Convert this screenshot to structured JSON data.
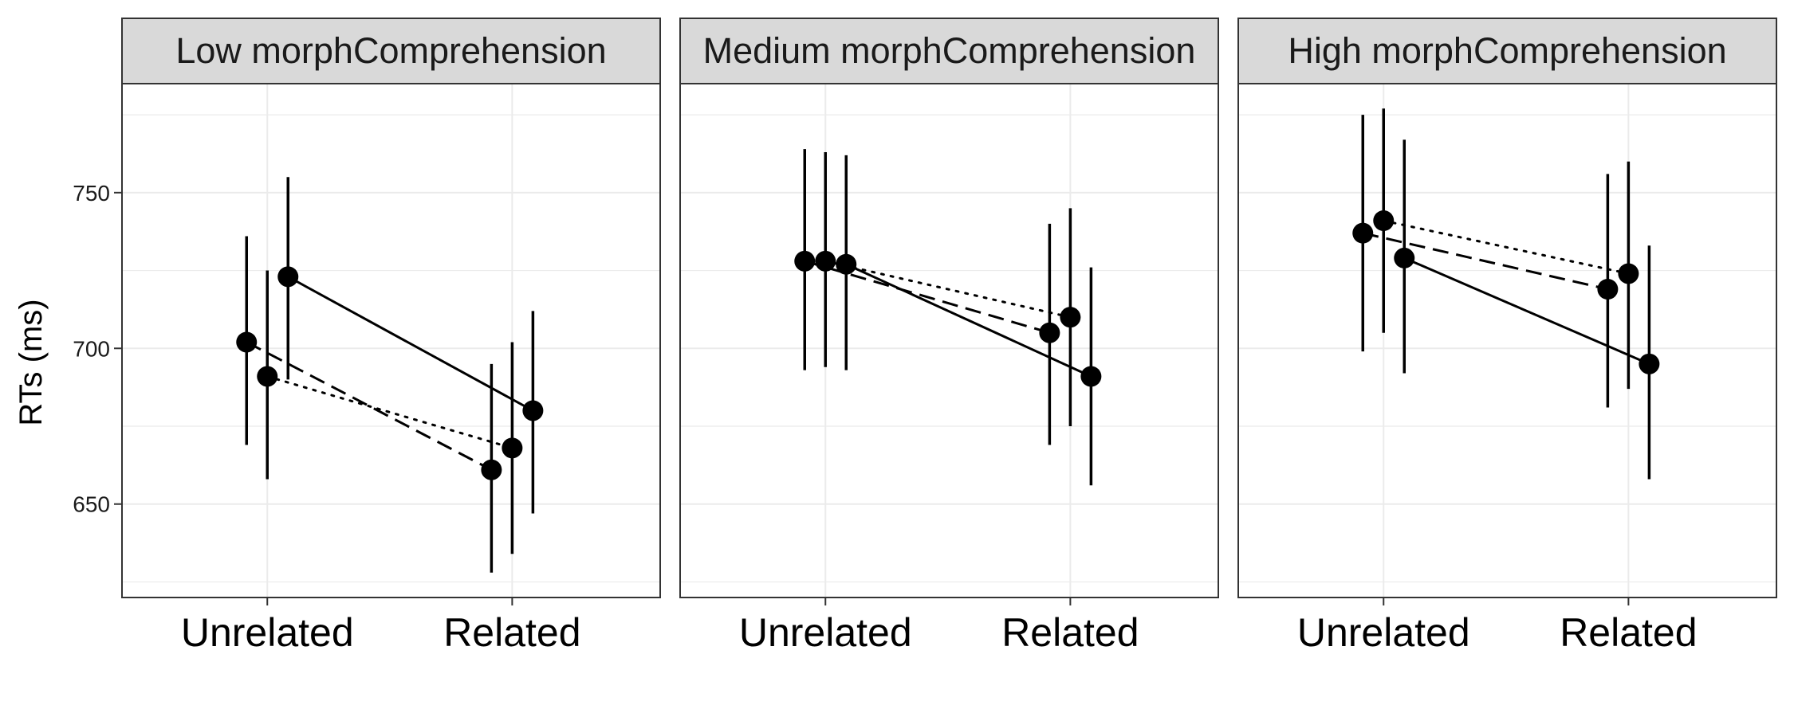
{
  "chart_data": {
    "type": "line",
    "ylabel": "RTs (ms)",
    "xlabel": "",
    "y_ticks": [
      650,
      700,
      750
    ],
    "ylim": [
      620,
      785
    ],
    "categories": [
      "Unrelated",
      "Related"
    ],
    "grid": true,
    "legend": "none",
    "panels": [
      {
        "title": "Low morphComprehension",
        "series": [
          {
            "linestyle": "dashed",
            "values": [
              702,
              661
            ],
            "lower": [
              669,
              628
            ],
            "upper": [
              736,
              695
            ]
          },
          {
            "linestyle": "dotted",
            "values": [
              691,
              668
            ],
            "lower": [
              658,
              634
            ],
            "upper": [
              725,
              702
            ]
          },
          {
            "linestyle": "solid",
            "values": [
              723,
              680
            ],
            "lower": [
              690,
              647
            ],
            "upper": [
              755,
              712
            ]
          }
        ]
      },
      {
        "title": "Medium morphComprehension",
        "series": [
          {
            "linestyle": "dashed",
            "values": [
              728,
              705
            ],
            "lower": [
              693,
              669
            ],
            "upper": [
              764,
              740
            ]
          },
          {
            "linestyle": "dotted",
            "values": [
              728,
              710
            ],
            "lower": [
              694,
              675
            ],
            "upper": [
              763,
              745
            ]
          },
          {
            "linestyle": "solid",
            "values": [
              727,
              691
            ],
            "lower": [
              693,
              656
            ],
            "upper": [
              762,
              726
            ]
          }
        ]
      },
      {
        "title": "High morphComprehension",
        "series": [
          {
            "linestyle": "dashed",
            "values": [
              737,
              719
            ],
            "lower": [
              699,
              681
            ],
            "upper": [
              775,
              756
            ]
          },
          {
            "linestyle": "dotted",
            "values": [
              741,
              724
            ],
            "lower": [
              705,
              687
            ],
            "upper": [
              777,
              760
            ]
          },
          {
            "linestyle": "solid",
            "values": [
              729,
              695
            ],
            "lower": [
              692,
              658
            ],
            "upper": [
              767,
              733
            ]
          }
        ]
      }
    ]
  }
}
